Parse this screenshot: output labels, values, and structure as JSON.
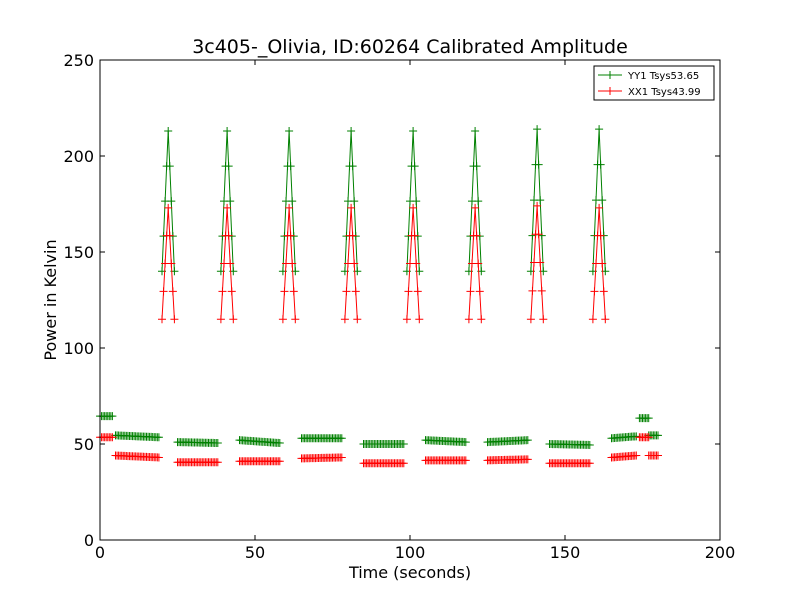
{
  "chart_data": {
    "type": "line",
    "title": "3c405-_Olivia, ID:60264 Calibrated Amplitude",
    "xlabel": "Time (seconds)",
    "ylabel": "Power in Kelvin",
    "xlim": [
      0,
      200
    ],
    "ylim": [
      0,
      250
    ],
    "xticks": [
      0,
      50,
      100,
      150,
      200
    ],
    "yticks": [
      0,
      50,
      100,
      150,
      200,
      250
    ],
    "grid": false,
    "legend_position": "top-right",
    "marker": "+",
    "series": [
      {
        "name": "YY1 Tsys53.65",
        "color": "#008000",
        "segments": [
          {
            "x": [
              0,
              4
            ],
            "y": [
              64.5,
              64.5
            ]
          },
          {
            "x": [
              5,
              19
            ],
            "y": [
              54.5,
              53.5
            ]
          },
          {
            "x": [
              20,
              22,
              24
            ],
            "y": [
              140,
              213,
              140
            ]
          },
          {
            "x": [
              25,
              38
            ],
            "y": [
              51,
              50.5
            ]
          },
          {
            "x": [
              39,
              41,
              43
            ],
            "y": [
              140,
              213,
              140
            ]
          },
          {
            "x": [
              45,
              58
            ],
            "y": [
              52,
              50.5
            ]
          },
          {
            "x": [
              59,
              61,
              63
            ],
            "y": [
              140,
              213,
              140
            ]
          },
          {
            "x": [
              65,
              78
            ],
            "y": [
              53,
              53
            ]
          },
          {
            "x": [
              79,
              81,
              83
            ],
            "y": [
              140,
              213,
              140
            ]
          },
          {
            "x": [
              85,
              98
            ],
            "y": [
              50,
              50
            ]
          },
          {
            "x": [
              99,
              101,
              103
            ],
            "y": [
              140,
              213,
              140
            ]
          },
          {
            "x": [
              105,
              118
            ],
            "y": [
              52,
              51
            ]
          },
          {
            "x": [
              119,
              121,
              123
            ],
            "y": [
              140,
              213,
              140
            ]
          },
          {
            "x": [
              125,
              138
            ],
            "y": [
              51,
              52
            ]
          },
          {
            "x": [
              139,
              141,
              143
            ],
            "y": [
              140,
              214,
              140
            ]
          },
          {
            "x": [
              145,
              158
            ],
            "y": [
              50,
              49.5
            ]
          },
          {
            "x": [
              159,
              161,
              163
            ],
            "y": [
              140,
              214,
              140
            ]
          },
          {
            "x": [
              165,
              173
            ],
            "y": [
              53,
              54
            ]
          },
          {
            "x": [
              174,
              177
            ],
            "y": [
              63.5,
              63.5
            ]
          },
          {
            "x": [
              177,
              180
            ],
            "y": [
              54.5,
              54.5
            ]
          }
        ]
      },
      {
        "name": "XX1 Tsys43.99",
        "color": "#ff0000",
        "segments": [
          {
            "x": [
              0,
              4
            ],
            "y": [
              53.5,
              53.5
            ]
          },
          {
            "x": [
              5,
              19
            ],
            "y": [
              44,
              43
            ]
          },
          {
            "x": [
              20,
              22,
              24
            ],
            "y": [
              115,
              173,
              115
            ]
          },
          {
            "x": [
              25,
              38
            ],
            "y": [
              40.5,
              40.5
            ]
          },
          {
            "x": [
              39,
              41,
              43
            ],
            "y": [
              115,
              173,
              115
            ]
          },
          {
            "x": [
              45,
              58
            ],
            "y": [
              41,
              41
            ]
          },
          {
            "x": [
              59,
              61,
              63
            ],
            "y": [
              115,
              173,
              115
            ]
          },
          {
            "x": [
              65,
              78
            ],
            "y": [
              42.5,
              43
            ]
          },
          {
            "x": [
              79,
              81,
              83
            ],
            "y": [
              115,
              173,
              115
            ]
          },
          {
            "x": [
              85,
              98
            ],
            "y": [
              40,
              40
            ]
          },
          {
            "x": [
              99,
              101,
              103
            ],
            "y": [
              115,
              173,
              115
            ]
          },
          {
            "x": [
              105,
              118
            ],
            "y": [
              41.5,
              41.5
            ]
          },
          {
            "x": [
              119,
              121,
              123
            ],
            "y": [
              115,
              173,
              115
            ]
          },
          {
            "x": [
              125,
              138
            ],
            "y": [
              41.5,
              42
            ]
          },
          {
            "x": [
              139,
              141,
              143
            ],
            "y": [
              115,
              174,
              115
            ]
          },
          {
            "x": [
              145,
              158
            ],
            "y": [
              40,
              40
            ]
          },
          {
            "x": [
              159,
              161,
              163
            ],
            "y": [
              115,
              173,
              115
            ]
          },
          {
            "x": [
              165,
              173
            ],
            "y": [
              43,
              44
            ]
          },
          {
            "x": [
              174,
              177
            ],
            "y": [
              53.5,
              53.5
            ]
          },
          {
            "x": [
              177,
              180
            ],
            "y": [
              44,
              44
            ]
          }
        ]
      }
    ]
  }
}
